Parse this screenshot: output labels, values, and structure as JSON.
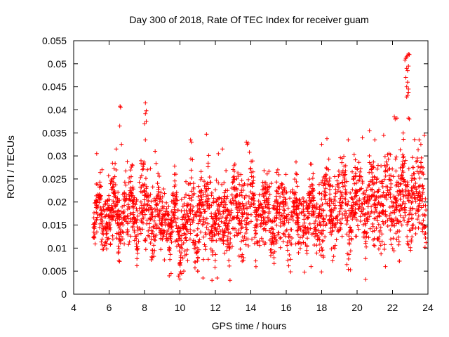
{
  "chart_data": {
    "type": "scatter",
    "title": "Day 300 of 2018, Rate Of TEC Index for receiver guam",
    "xlabel": "GPS time / hours",
    "ylabel": "ROTI / TECUs",
    "xlim": [
      4,
      24
    ],
    "ylim": [
      0,
      0.055
    ],
    "x_ticks": [
      4,
      6,
      8,
      10,
      12,
      14,
      16,
      18,
      20,
      22,
      24
    ],
    "x_tick_labels": [
      "4",
      "6",
      "8",
      "10",
      "12",
      "14",
      "16",
      "18",
      "20",
      "22",
      "24"
    ],
    "y_ticks": [
      0,
      0.005,
      0.01,
      0.015,
      0.02,
      0.025,
      0.03,
      0.035,
      0.04,
      0.045,
      0.05,
      0.055
    ],
    "y_tick_labels": [
      "0",
      "0.005",
      "0.01",
      "0.015",
      "0.02",
      "0.025",
      "0.03",
      "0.035",
      "0.04",
      "0.045",
      "0.05",
      "0.055"
    ],
    "marker": "plus",
    "series_color": "#ff0000",
    "grid": false,
    "legend": "none",
    "x_start": 5.1,
    "x_end": 23.9,
    "profile": {
      "x": [
        5.1,
        6.0,
        7.0,
        8.0,
        9.0,
        10.0,
        11.0,
        12.0,
        13.0,
        14.0,
        15.0,
        16.0,
        17.0,
        18.0,
        19.0,
        20.0,
        21.0,
        22.0,
        23.0,
        23.9
      ],
      "lower": [
        0.009,
        0.009,
        0.008,
        0.008,
        0.006,
        0.005,
        0.005,
        0.006,
        0.007,
        0.007,
        0.008,
        0.008,
        0.007,
        0.007,
        0.008,
        0.008,
        0.007,
        0.008,
        0.009,
        0.009
      ],
      "upper": [
        0.024,
        0.026,
        0.028,
        0.03,
        0.026,
        0.024,
        0.029,
        0.028,
        0.028,
        0.031,
        0.027,
        0.026,
        0.027,
        0.029,
        0.029,
        0.03,
        0.031,
        0.033,
        0.035,
        0.03
      ]
    },
    "outliers": [
      {
        "x": 6.65,
        "y": 0.0405
      },
      {
        "x": 6.62,
        "y": 0.0408
      },
      {
        "x": 6.6,
        "y": 0.0365
      },
      {
        "x": 6.7,
        "y": 0.0325
      },
      {
        "x": 6.4,
        "y": 0.0315
      },
      {
        "x": 5.3,
        "y": 0.0305
      },
      {
        "x": 8.05,
        "y": 0.0415
      },
      {
        "x": 8.1,
        "y": 0.0398
      },
      {
        "x": 8.05,
        "y": 0.0392
      },
      {
        "x": 8.1,
        "y": 0.0375
      },
      {
        "x": 8.0,
        "y": 0.037
      },
      {
        "x": 8.05,
        "y": 0.0335
      },
      {
        "x": 8.6,
        "y": 0.031
      },
      {
        "x": 10.6,
        "y": 0.0335
      },
      {
        "x": 10.65,
        "y": 0.033
      },
      {
        "x": 11.5,
        "y": 0.0347
      },
      {
        "x": 11.3,
        "y": 0.0035
      },
      {
        "x": 12.1,
        "y": 0.0035
      },
      {
        "x": 13.75,
        "y": 0.033
      },
      {
        "x": 13.8,
        "y": 0.0325
      },
      {
        "x": 13.85,
        "y": 0.0328
      },
      {
        "x": 12.4,
        "y": 0.0315
      },
      {
        "x": 18.0,
        "y": 0.0325
      },
      {
        "x": 19.5,
        "y": 0.0335
      },
      {
        "x": 20.7,
        "y": 0.0355
      },
      {
        "x": 21.5,
        "y": 0.0345
      },
      {
        "x": 20.3,
        "y": 0.034
      },
      {
        "x": 21.0,
        "y": 0.0335
      },
      {
        "x": 22.1,
        "y": 0.0385
      },
      {
        "x": 22.15,
        "y": 0.038
      },
      {
        "x": 22.25,
        "y": 0.0382
      },
      {
        "x": 22.9,
        "y": 0.0382
      },
      {
        "x": 22.95,
        "y": 0.038
      },
      {
        "x": 22.7,
        "y": 0.0508
      },
      {
        "x": 22.75,
        "y": 0.0512
      },
      {
        "x": 22.8,
        "y": 0.0515
      },
      {
        "x": 22.85,
        "y": 0.0518
      },
      {
        "x": 22.9,
        "y": 0.0521
      },
      {
        "x": 22.95,
        "y": 0.052
      },
      {
        "x": 22.8,
        "y": 0.049
      },
      {
        "x": 22.85,
        "y": 0.0485
      },
      {
        "x": 22.9,
        "y": 0.0495
      },
      {
        "x": 22.75,
        "y": 0.047
      },
      {
        "x": 22.85,
        "y": 0.046
      },
      {
        "x": 22.8,
        "y": 0.045
      },
      {
        "x": 22.9,
        "y": 0.0445
      },
      {
        "x": 22.85,
        "y": 0.0432
      },
      {
        "x": 22.8,
        "y": 0.0428
      },
      {
        "x": 22.9,
        "y": 0.0438
      },
      {
        "x": 22.6,
        "y": 0.035
      },
      {
        "x": 23.5,
        "y": 0.0335
      },
      {
        "x": 23.8,
        "y": 0.0345
      },
      {
        "x": 23.6,
        "y": 0.0325
      },
      {
        "x": 5.6,
        "y": 0.027
      },
      {
        "x": 9.5,
        "y": 0.0045
      },
      {
        "x": 10.1,
        "y": 0.0045
      },
      {
        "x": 11.0,
        "y": 0.005
      },
      {
        "x": 17.4,
        "y": 0.006
      },
      {
        "x": 21.6,
        "y": 0.006
      }
    ]
  }
}
